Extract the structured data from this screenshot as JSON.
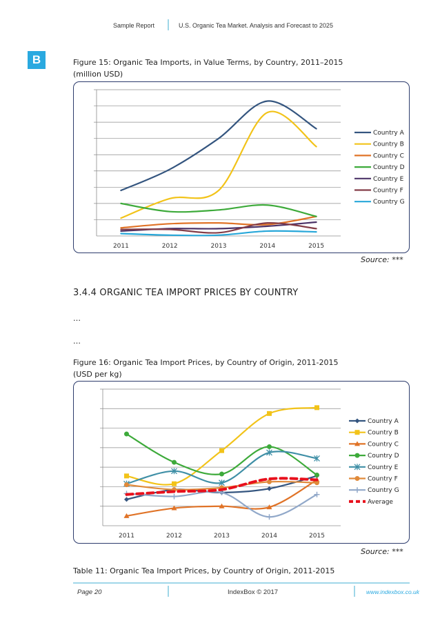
{
  "header": {
    "left": "Sample Report",
    "right": "U.S. Organic Tea Market. Analysis and Forecast to 2025"
  },
  "badge": "B",
  "figure15": {
    "caption_line1": "Figure 15: Organic Tea Imports, in Value Terms, by Country, 2011–2015",
    "caption_line2": "(million USD)",
    "source": "Source: ***"
  },
  "section": {
    "heading": "3.4.4 ORGANIC TEA IMPORT PRICES BY COUNTRY",
    "ellipsis1": "…",
    "ellipsis2": "…"
  },
  "figure16": {
    "caption_line1": "Figure 16: Organic Tea Import Prices, by Country of Origin, 2011-2015",
    "caption_line2": "(USD per kg)",
    "source": "Source: ***"
  },
  "table11": {
    "caption": "Table 11: Organic Tea Import Prices, by Country of Origin, 2011-2015"
  },
  "footer": {
    "page": "Page 20",
    "center": "IndexBox © 2017",
    "link": "www.indexbox.co.uk"
  },
  "colors": {
    "accent": "#2aa9e0",
    "frame": "#2b3a6b",
    "grid": "#8c8c8c"
  },
  "chart_data": [
    {
      "type": "line",
      "title": "Organic Tea Imports, in Value Terms, by Country, 2011–2015",
      "ylabel": "million USD",
      "categories": [
        "2011",
        "2012",
        "2013",
        "2014",
        "2015"
      ],
      "ylim": [
        0,
        9
      ],
      "series": [
        {
          "name": "Country A",
          "color": "#34557f",
          "values": [
            2.8,
            4.1,
            6.0,
            8.3,
            6.6
          ]
        },
        {
          "name": "Country B",
          "color": "#f2c319",
          "values": [
            1.1,
            2.3,
            2.8,
            7.6,
            5.5
          ]
        },
        {
          "name": "Country C",
          "color": "#e07327",
          "values": [
            0.5,
            0.75,
            0.8,
            0.7,
            1.2
          ]
        },
        {
          "name": "Country D",
          "color": "#3daa3a",
          "values": [
            2.0,
            1.5,
            1.6,
            1.9,
            1.2
          ]
        },
        {
          "name": "Country E",
          "color": "#4b3267",
          "values": [
            0.3,
            0.45,
            0.45,
            0.6,
            0.85
          ]
        },
        {
          "name": "Country F",
          "color": "#833c47",
          "values": [
            0.4,
            0.4,
            0.2,
            0.8,
            0.45
          ]
        },
        {
          "name": "Country G",
          "color": "#27a7d9",
          "values": [
            0.15,
            0.05,
            0.05,
            0.3,
            0.25
          ]
        }
      ]
    },
    {
      "type": "line",
      "title": "Organic Tea Import Prices, by Country of Origin, 2011-2015",
      "ylabel": "USD per kg",
      "categories": [
        "2011",
        "2012",
        "2013",
        "2014",
        "2015"
      ],
      "ylim": [
        0,
        7
      ],
      "series": [
        {
          "name": "Country A",
          "color": "#34557f",
          "marker": "diamond",
          "values": [
            1.35,
            1.85,
            1.7,
            1.9,
            2.55
          ]
        },
        {
          "name": "Country B",
          "color": "#f2c319",
          "marker": "square",
          "values": [
            2.55,
            2.15,
            3.85,
            5.75,
            6.05
          ]
        },
        {
          "name": "Country C",
          "color": "#e07327",
          "marker": "triangle",
          "values": [
            0.5,
            0.9,
            1.0,
            0.95,
            2.35
          ]
        },
        {
          "name": "Country D",
          "color": "#3daa3a",
          "marker": "circle",
          "values": [
            4.7,
            3.25,
            2.65,
            4.05,
            2.6
          ]
        },
        {
          "name": "Country E",
          "color": "#3f8fa6",
          "marker": "asterisk",
          "values": [
            2.15,
            2.8,
            2.2,
            3.75,
            3.45
          ]
        },
        {
          "name": "Country F",
          "color": "#e08a3a",
          "marker": "circle",
          "values": [
            2.1,
            1.85,
            1.95,
            2.25,
            2.2
          ]
        },
        {
          "name": "Country G",
          "color": "#91a8c9",
          "marker": "plus",
          "values": [
            1.65,
            1.5,
            1.7,
            0.45,
            1.6
          ]
        },
        {
          "name": "Average",
          "color": "#e8101c",
          "marker": "none",
          "dashed": true,
          "values": [
            1.6,
            1.75,
            1.85,
            2.4,
            2.35
          ]
        }
      ]
    }
  ]
}
